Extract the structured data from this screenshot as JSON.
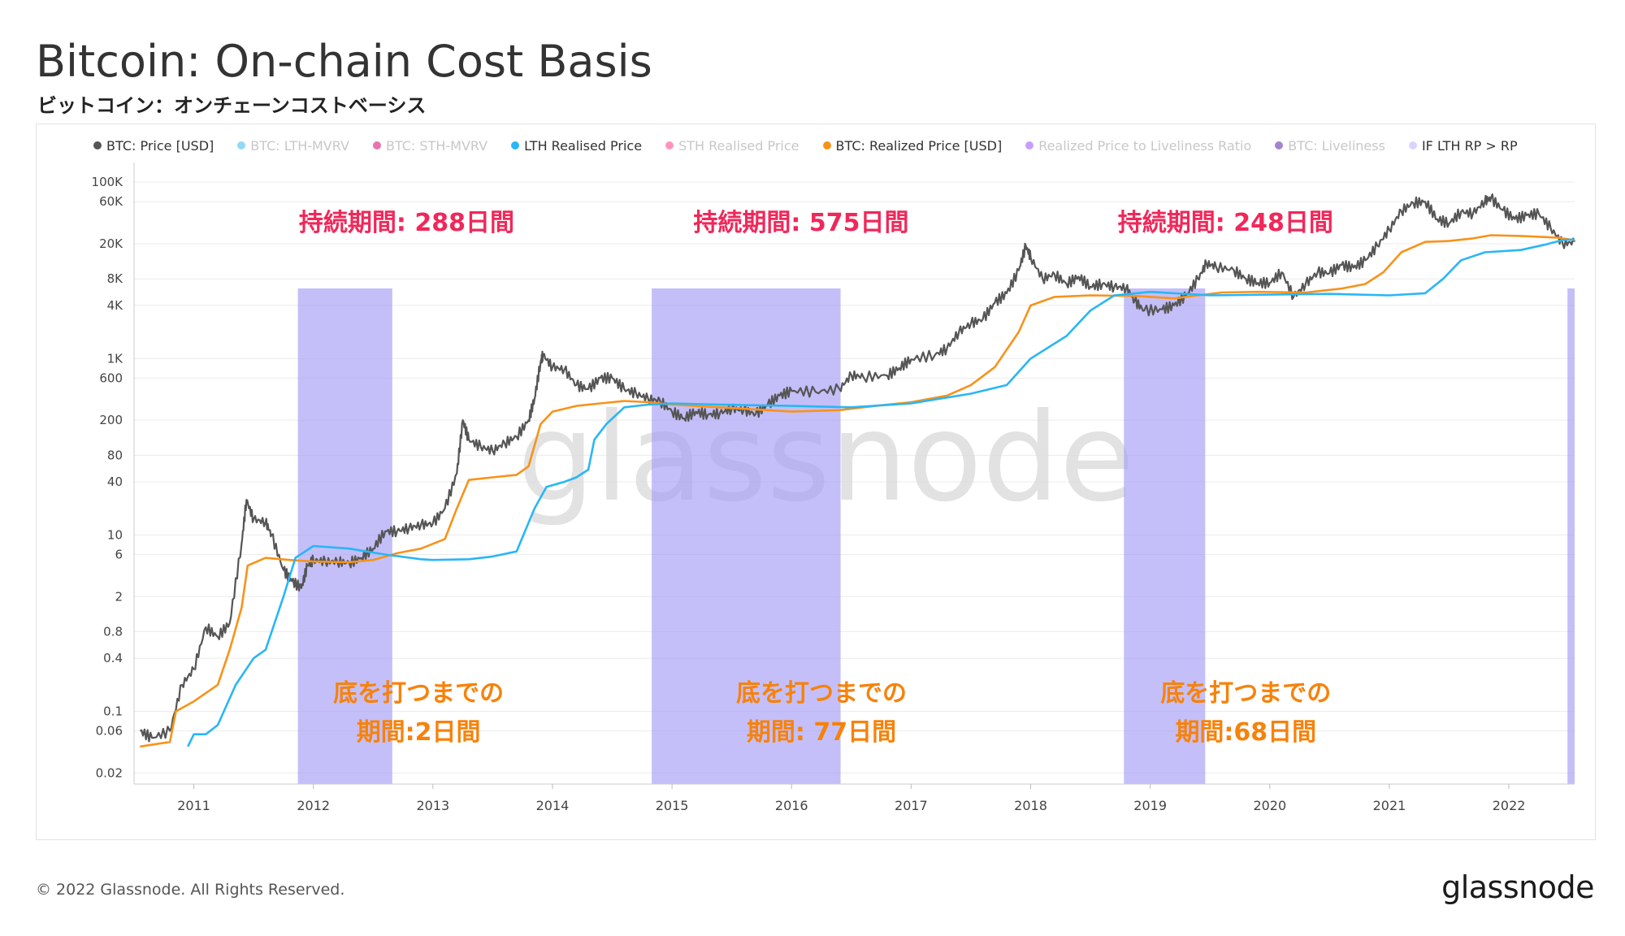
{
  "header": {
    "title": "Bitcoin: On-chain Cost Basis",
    "subtitle": "ビットコイン：オンチェーンコストベーシス"
  },
  "footer": {
    "copyright": "© 2022 Glassnode. All Rights Reserved.",
    "brand": "glassnode"
  },
  "chart_data": {
    "type": "line",
    "title": "Bitcoin: On-chain Cost Basis",
    "y_scale": "log",
    "ylim": [
      0.015,
      150000
    ],
    "xlim": [
      2010.5,
      2022.55
    ],
    "grid": true,
    "legend_placement": "top-left",
    "watermark": "glassnode",
    "x_ticks": [
      "2011",
      "2012",
      "2013",
      "2014",
      "2015",
      "2016",
      "2017",
      "2018",
      "2019",
      "2020",
      "2021",
      "2022"
    ],
    "y_ticks": [
      {
        "label": "100K",
        "value": 100000
      },
      {
        "label": "60K",
        "value": 60000
      },
      {
        "label": "20K",
        "value": 20000
      },
      {
        "label": "8K",
        "value": 8000
      },
      {
        "label": "4K",
        "value": 4000
      },
      {
        "label": "1K",
        "value": 1000
      },
      {
        "label": "600",
        "value": 600
      },
      {
        "label": "200",
        "value": 200
      },
      {
        "label": "80",
        "value": 80
      },
      {
        "label": "40",
        "value": 40
      },
      {
        "label": "10",
        "value": 10
      },
      {
        "label": "6",
        "value": 6
      },
      {
        "label": "2",
        "value": 2
      },
      {
        "label": "0.8",
        "value": 0.8
      },
      {
        "label": "0.4",
        "value": 0.4
      },
      {
        "label": "0.1",
        "value": 0.1
      },
      {
        "label": "0.06",
        "value": 0.06
      },
      {
        "label": "0.02",
        "value": 0.02
      }
    ],
    "legend": [
      {
        "name": "BTC: Price [USD]",
        "color": "#555555",
        "active": true
      },
      {
        "name": "BTC: LTH-MVRV",
        "color": "#3db8f0",
        "active": false
      },
      {
        "name": "BTC: STH-MVRV",
        "color": "#d6006f",
        "active": false
      },
      {
        "name": "LTH Realised Price",
        "color": "#29b6f6",
        "active": true
      },
      {
        "name": "STH Realised Price",
        "color": "#ff3d8b",
        "active": false
      },
      {
        "name": "BTC: Realized Price [USD]",
        "color": "#f7931a",
        "active": true
      },
      {
        "name": "Realized Price to Liveliness Ratio",
        "color": "#9a4dff",
        "active": false
      },
      {
        "name": "BTC: Liveliness",
        "color": "#5b1fa6",
        "active": false
      },
      {
        "name": "IF LTH RP > RP",
        "color": "#d9d4ff",
        "active": true
      }
    ],
    "shaded_regions": [
      {
        "start": 2011.87,
        "end": 2012.66,
        "series": "IF LTH RP > RP"
      },
      {
        "start": 2014.83,
        "end": 2016.41,
        "series": "IF LTH RP > RP"
      },
      {
        "start": 2018.78,
        "end": 2019.46,
        "series": "IF LTH RP > RP"
      },
      {
        "start": 2022.49,
        "end": 2022.55,
        "series": "IF LTH RP > RP"
      }
    ],
    "annotations": [
      {
        "text": "持続期間: 288日間",
        "x": 2012.1,
        "y": 28000,
        "color": "#f0285a"
      },
      {
        "text": "持続期間: 575日間",
        "x": 2015.4,
        "y": 28000,
        "color": "#f0285a"
      },
      {
        "text": "持続期間: 248日間",
        "x": 2018.95,
        "y": 28000,
        "color": "#f0285a"
      },
      {
        "text": "底を打つまでの",
        "x": 2012.2,
        "y": 0.13,
        "color": "#f7820a"
      },
      {
        "text": "期間:2日間",
        "x": 2012.2,
        "y": 0.047,
        "color": "#f7820a"
      },
      {
        "text": "底を打つまでの",
        "x": 2015.57,
        "y": 0.13,
        "color": "#f7820a"
      },
      {
        "text": "期間: 77日間",
        "x": 2015.57,
        "y": 0.047,
        "color": "#f7820a"
      },
      {
        "text": "底を打つまでの",
        "x": 2019.12,
        "y": 0.13,
        "color": "#f7820a"
      },
      {
        "text": "期間:68日間",
        "x": 2019.12,
        "y": 0.047,
        "color": "#f7820a"
      }
    ],
    "series": [
      {
        "name": "BTC: Price [USD]",
        "color": "#555555",
        "points": [
          [
            2010.55,
            0.06
          ],
          [
            2010.65,
            0.05
          ],
          [
            2010.8,
            0.06
          ],
          [
            2010.9,
            0.2
          ],
          [
            2011.0,
            0.3
          ],
          [
            2011.1,
            0.9
          ],
          [
            2011.2,
            0.7
          ],
          [
            2011.3,
            1.0
          ],
          [
            2011.4,
            8
          ],
          [
            2011.44,
            25
          ],
          [
            2011.5,
            15
          ],
          [
            2011.6,
            14
          ],
          [
            2011.65,
            10
          ],
          [
            2011.75,
            4
          ],
          [
            2011.82,
            3
          ],
          [
            2011.9,
            2.5
          ],
          [
            2011.95,
            4.5
          ],
          [
            2012.0,
            5.2
          ],
          [
            2012.1,
            5.0
          ],
          [
            2012.2,
            5.0
          ],
          [
            2012.3,
            4.8
          ],
          [
            2012.4,
            5.5
          ],
          [
            2012.5,
            7
          ],
          [
            2012.6,
            11
          ],
          [
            2012.7,
            11
          ],
          [
            2012.8,
            12
          ],
          [
            2012.9,
            13
          ],
          [
            2013.0,
            13.5
          ],
          [
            2013.1,
            20
          ],
          [
            2013.2,
            50
          ],
          [
            2013.25,
            200
          ],
          [
            2013.3,
            120
          ],
          [
            2013.4,
            100
          ],
          [
            2013.5,
            90
          ],
          [
            2013.6,
            110
          ],
          [
            2013.7,
            130
          ],
          [
            2013.8,
            200
          ],
          [
            2013.85,
            350
          ],
          [
            2013.9,
            900
          ],
          [
            2013.92,
            1100
          ],
          [
            2014.0,
            800
          ],
          [
            2014.1,
            750
          ],
          [
            2014.2,
            500
          ],
          [
            2014.3,
            450
          ],
          [
            2014.4,
            600
          ],
          [
            2014.5,
            600
          ],
          [
            2014.6,
            450
          ],
          [
            2014.7,
            400
          ],
          [
            2014.8,
            350
          ],
          [
            2014.9,
            330
          ],
          [
            2015.0,
            250
          ],
          [
            2015.1,
            210
          ],
          [
            2015.2,
            250
          ],
          [
            2015.3,
            230
          ],
          [
            2015.4,
            240
          ],
          [
            2015.5,
            270
          ],
          [
            2015.6,
            260
          ],
          [
            2015.7,
            235
          ],
          [
            2015.8,
            300
          ],
          [
            2015.9,
            380
          ],
          [
            2016.0,
            430
          ],
          [
            2016.2,
            420
          ],
          [
            2016.4,
            450
          ],
          [
            2016.5,
            650
          ],
          [
            2016.6,
            620
          ],
          [
            2016.8,
            640
          ],
          [
            2016.9,
            780
          ],
          [
            2017.0,
            980
          ],
          [
            2017.2,
            1100
          ],
          [
            2017.3,
            1300
          ],
          [
            2017.4,
            2000
          ],
          [
            2017.5,
            2500
          ],
          [
            2017.6,
            2800
          ],
          [
            2017.7,
            4300
          ],
          [
            2017.8,
            5500
          ],
          [
            2017.9,
            10000
          ],
          [
            2017.96,
            19000
          ],
          [
            2018.0,
            14000
          ],
          [
            2018.1,
            8000
          ],
          [
            2018.2,
            9000
          ],
          [
            2018.3,
            7000
          ],
          [
            2018.4,
            8500
          ],
          [
            2018.5,
            6500
          ],
          [
            2018.6,
            7000
          ],
          [
            2018.7,
            6500
          ],
          [
            2018.8,
            6300
          ],
          [
            2018.87,
            4500
          ],
          [
            2018.95,
            3500
          ],
          [
            2019.1,
            3600
          ],
          [
            2019.2,
            4000
          ],
          [
            2019.3,
            5200
          ],
          [
            2019.4,
            8000
          ],
          [
            2019.47,
            12000
          ],
          [
            2019.55,
            11000
          ],
          [
            2019.7,
            10000
          ],
          [
            2019.8,
            8000
          ],
          [
            2019.9,
            7200
          ],
          [
            2020.0,
            7200
          ],
          [
            2020.1,
            9500
          ],
          [
            2020.2,
            5000
          ],
          [
            2020.3,
            7000
          ],
          [
            2020.4,
            9500
          ],
          [
            2020.5,
            9300
          ],
          [
            2020.6,
            11500
          ],
          [
            2020.7,
            10700
          ],
          [
            2020.8,
            13000
          ],
          [
            2020.9,
            19000
          ],
          [
            2021.0,
            29000
          ],
          [
            2021.1,
            47000
          ],
          [
            2021.2,
            58000
          ],
          [
            2021.3,
            60000
          ],
          [
            2021.4,
            38000
          ],
          [
            2021.5,
            34000
          ],
          [
            2021.6,
            46000
          ],
          [
            2021.7,
            44000
          ],
          [
            2021.8,
            61000
          ],
          [
            2021.85,
            66000
          ],
          [
            2021.95,
            48000
          ],
          [
            2022.05,
            38000
          ],
          [
            2022.15,
            42000
          ],
          [
            2022.25,
            44000
          ],
          [
            2022.35,
            30000
          ],
          [
            2022.45,
            20000
          ],
          [
            2022.55,
            21000
          ]
        ]
      },
      {
        "name": "BTC: Realized Price [USD]",
        "color": "#f7931a",
        "points": [
          [
            2010.55,
            0.04
          ],
          [
            2010.8,
            0.045
          ],
          [
            2010.85,
            0.1
          ],
          [
            2011.0,
            0.13
          ],
          [
            2011.2,
            0.2
          ],
          [
            2011.3,
            0.5
          ],
          [
            2011.4,
            1.5
          ],
          [
            2011.45,
            4.5
          ],
          [
            2011.6,
            5.5
          ],
          [
            2011.8,
            5.2
          ],
          [
            2012.0,
            5.0
          ],
          [
            2012.3,
            4.9
          ],
          [
            2012.5,
            5.2
          ],
          [
            2012.7,
            6.2
          ],
          [
            2012.9,
            7.0
          ],
          [
            2013.1,
            9
          ],
          [
            2013.2,
            20
          ],
          [
            2013.3,
            42
          ],
          [
            2013.5,
            45
          ],
          [
            2013.7,
            48
          ],
          [
            2013.8,
            60
          ],
          [
            2013.9,
            180
          ],
          [
            2014.0,
            250
          ],
          [
            2014.2,
            290
          ],
          [
            2014.4,
            310
          ],
          [
            2014.6,
            330
          ],
          [
            2014.8,
            320
          ],
          [
            2015.0,
            300
          ],
          [
            2015.4,
            280
          ],
          [
            2015.8,
            260
          ],
          [
            2016.0,
            250
          ],
          [
            2016.4,
            260
          ],
          [
            2016.7,
            290
          ],
          [
            2017.0,
            320
          ],
          [
            2017.3,
            380
          ],
          [
            2017.5,
            500
          ],
          [
            2017.7,
            800
          ],
          [
            2017.9,
            2000
          ],
          [
            2018.0,
            4000
          ],
          [
            2018.2,
            5000
          ],
          [
            2018.5,
            5200
          ],
          [
            2018.9,
            5100
          ],
          [
            2019.2,
            4800
          ],
          [
            2019.4,
            5200
          ],
          [
            2019.6,
            5600
          ],
          [
            2019.9,
            5700
          ],
          [
            2020.3,
            5600
          ],
          [
            2020.6,
            6200
          ],
          [
            2020.8,
            7000
          ],
          [
            2020.95,
            9500
          ],
          [
            2021.1,
            16000
          ],
          [
            2021.3,
            21000
          ],
          [
            2021.5,
            21500
          ],
          [
            2021.7,
            23000
          ],
          [
            2021.85,
            25000
          ],
          [
            2022.1,
            24500
          ],
          [
            2022.4,
            23500
          ],
          [
            2022.55,
            22000
          ]
        ]
      },
      {
        "name": "LTH Realised Price",
        "color": "#29b6f6",
        "points": [
          [
            2010.95,
            0.04
          ],
          [
            2011.0,
            0.055
          ],
          [
            2011.1,
            0.055
          ],
          [
            2011.2,
            0.07
          ],
          [
            2011.35,
            0.2
          ],
          [
            2011.5,
            0.4
          ],
          [
            2011.6,
            0.5
          ],
          [
            2011.75,
            2
          ],
          [
            2011.85,
            5.5
          ],
          [
            2012.0,
            7.5
          ],
          [
            2012.3,
            7.0
          ],
          [
            2012.6,
            6.0
          ],
          [
            2012.9,
            5.3
          ],
          [
            2013.0,
            5.2
          ],
          [
            2013.3,
            5.3
          ],
          [
            2013.5,
            5.7
          ],
          [
            2013.7,
            6.5
          ],
          [
            2013.85,
            20
          ],
          [
            2013.95,
            35
          ],
          [
            2014.1,
            40
          ],
          [
            2014.2,
            45
          ],
          [
            2014.3,
            55
          ],
          [
            2014.35,
            120
          ],
          [
            2014.45,
            180
          ],
          [
            2014.6,
            280
          ],
          [
            2014.8,
            300
          ],
          [
            2015.0,
            310
          ],
          [
            2015.4,
            300
          ],
          [
            2016.0,
            290
          ],
          [
            2016.5,
            280
          ],
          [
            2017.0,
            310
          ],
          [
            2017.5,
            400
          ],
          [
            2017.8,
            500
          ],
          [
            2018.0,
            1000
          ],
          [
            2018.3,
            1800
          ],
          [
            2018.5,
            3500
          ],
          [
            2018.7,
            5200
          ],
          [
            2019.0,
            5700
          ],
          [
            2019.5,
            5200
          ],
          [
            2020.0,
            5300
          ],
          [
            2020.5,
            5400
          ],
          [
            2021.0,
            5200
          ],
          [
            2021.3,
            5500
          ],
          [
            2021.45,
            8000
          ],
          [
            2021.6,
            13000
          ],
          [
            2021.8,
            16000
          ],
          [
            2022.1,
            17000
          ],
          [
            2022.3,
            19500
          ],
          [
            2022.45,
            22000
          ],
          [
            2022.55,
            22500
          ]
        ]
      }
    ]
  }
}
